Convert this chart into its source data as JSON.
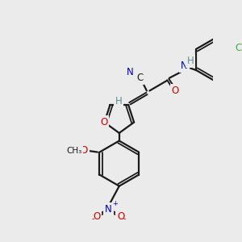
{
  "bg_color": "#ebebeb",
  "bond_color": "#1a1a1a",
  "atom_colors": {
    "N": "#0000cc",
    "O": "#cc0000",
    "Cl": "#44aa44",
    "H": "#5a9090",
    "C": "#1a1a1a"
  }
}
